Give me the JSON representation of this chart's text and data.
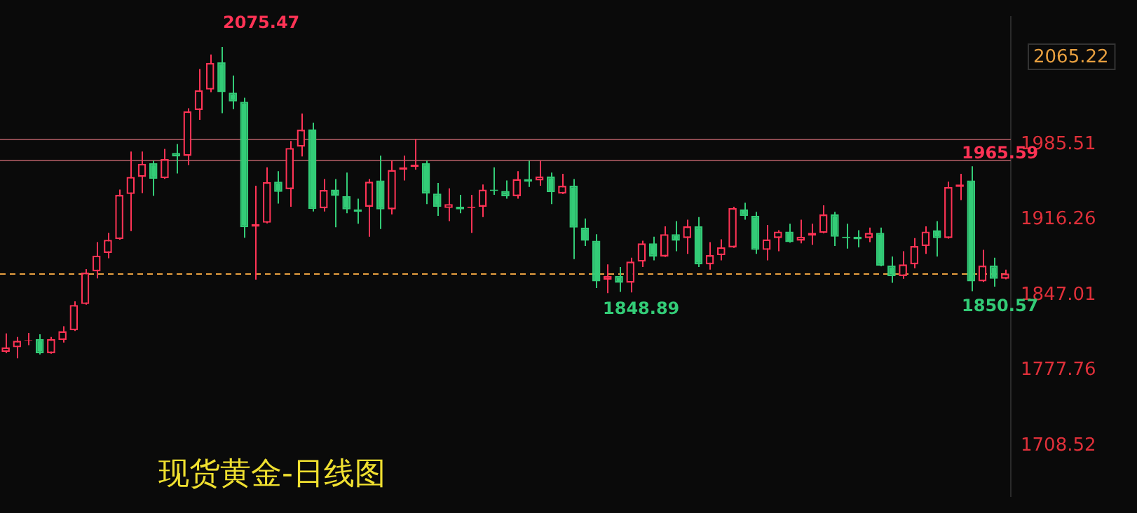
{
  "chart_data": {
    "type": "candlestick",
    "title": "现货黄金-日线图",
    "categories": [
      null,
      null,
      null,
      null,
      null,
      null,
      null,
      null,
      null,
      null,
      null,
      null,
      null,
      null,
      null,
      null,
      null,
      null,
      null,
      null,
      null,
      null,
      null,
      null,
      null,
      null,
      null,
      null,
      null,
      null,
      null,
      null,
      null,
      null,
      null,
      null,
      null,
      null,
      null,
      null,
      null,
      null,
      null,
      null,
      null,
      null,
      null,
      null,
      null,
      null,
      null,
      null,
      null,
      null,
      null,
      null,
      null,
      null,
      null,
      null,
      null,
      null,
      null,
      null,
      null,
      null,
      null,
      null,
      null,
      null,
      null,
      null,
      null,
      null,
      null,
      null,
      null,
      null,
      null,
      null,
      null,
      null,
      null,
      null,
      null,
      null,
      null,
      null,
      null
    ],
    "ohlc": [
      [
        1794.8,
        1811.7,
        1793.6,
        1799.0
      ],
      [
        1799.0,
        1808.6,
        1788.8,
        1805.0
      ],
      [
        1805.0,
        1812.2,
        1800.9,
        1805.7
      ],
      [
        1806.6,
        1811.0,
        1792.4,
        1793.6
      ],
      [
        1793.6,
        1808.6,
        1793.0,
        1806.6
      ],
      [
        1805.7,
        1818.3,
        1803.3,
        1813.8
      ],
      [
        1814.6,
        1841.2,
        1814.0,
        1837.9
      ],
      [
        1838.8,
        1870.9,
        1838.2,
        1867.7
      ],
      [
        1868.9,
        1895.8,
        1862.4,
        1883.4
      ],
      [
        1885.8,
        1904.3,
        1881.0,
        1897.9
      ],
      [
        1898.6,
        1944.1,
        1898.0,
        1939.3
      ],
      [
        1940.1,
        1979.1,
        1905.9,
        1955.8
      ],
      [
        1955.8,
        1979.1,
        1940.9,
        1967.9
      ],
      [
        1968.3,
        1970.7,
        1938.4,
        1954.1
      ],
      [
        1954.6,
        1981.5,
        1954.0,
        1972.2
      ],
      [
        1977.9,
        1986.0,
        1959.0,
        1974.6
      ],
      [
        1975.1,
        2018.9,
        1966.7,
        2016.2
      ],
      [
        2017.4,
        2055.1,
        2008.4,
        2035.5
      ],
      [
        2036.2,
        2068.4,
        2033.8,
        2060.8
      ],
      [
        2061.2,
        2075.47,
        2014.5,
        2033.8
      ],
      [
        2033.4,
        2049.1,
        2018.1,
        2025.3
      ],
      [
        2025.0,
        2028.6,
        1899.8,
        1909.5
      ],
      [
        1910.0,
        1947.7,
        1861.2,
        1912.4
      ],
      [
        1913.6,
        1964.6,
        1913.0,
        1951.0
      ],
      [
        1951.4,
        1961.0,
        1931.2,
        1942.1
      ],
      [
        1944.5,
        1988.8,
        1928.4,
        1982.4
      ],
      [
        1983.6,
        2014.1,
        1974.6,
        1999.3
      ],
      [
        1999.6,
        2005.7,
        1924.0,
        1926.4
      ],
      [
        1926.9,
        1953.8,
        1924.0,
        1943.8
      ],
      [
        1944.1,
        1953.8,
        1909.5,
        1938.4
      ],
      [
        1938.1,
        1959.8,
        1922.4,
        1926.0
      ],
      [
        1926.0,
        1935.7,
        1912.7,
        1923.6
      ],
      [
        1928.4,
        1953.8,
        1900.7,
        1951.4
      ],
      [
        1952.6,
        1975.5,
        1907.9,
        1926.0
      ],
      [
        1926.0,
        1970.7,
        1921.2,
        1962.2
      ],
      [
        1962.6,
        1975.5,
        1952.6,
        1964.6
      ],
      [
        1965.0,
        1990.8,
        1962.6,
        1967.0
      ],
      [
        1968.3,
        1970.7,
        1930.8,
        1940.5
      ],
      [
        1940.5,
        1950.2,
        1920.0,
        1928.4
      ],
      [
        1927.2,
        1945.3,
        1915.2,
        1930.8
      ],
      [
        1928.4,
        1939.3,
        1922.4,
        1926.0
      ],
      [
        1927.2,
        1939.3,
        1904.3,
        1928.4
      ],
      [
        1928.4,
        1948.9,
        1918.8,
        1944.1
      ],
      [
        1944.1,
        1964.6,
        1939.3,
        1942.9
      ],
      [
        1942.9,
        1952.6,
        1935.7,
        1938.1
      ],
      [
        1938.1,
        1961.0,
        1935.7,
        1953.8
      ],
      [
        1953.8,
        1970.7,
        1946.5,
        1951.4
      ],
      [
        1952.6,
        1970.7,
        1947.7,
        1956.2
      ],
      [
        1956.2,
        1959.8,
        1930.8,
        1941.7
      ],
      [
        1940.5,
        1958.6,
        1940.0,
        1947.7
      ],
      [
        1947.7,
        1953.8,
        1880.2,
        1909.1
      ],
      [
        1909.1,
        1917.6,
        1892.2,
        1897.1
      ],
      [
        1897.1,
        1903.1,
        1853.6,
        1859.7
      ],
      [
        1861.2,
        1875.3,
        1848.89,
        1864.5
      ],
      [
        1864.5,
        1872.9,
        1850.0,
        1858.4
      ],
      [
        1858.4,
        1881.4,
        1849.5,
        1877.8
      ],
      [
        1877.8,
        1897.1,
        1872.9,
        1894.6
      ],
      [
        1894.6,
        1900.7,
        1879.0,
        1882.6
      ],
      [
        1882.6,
        1910.3,
        1882.0,
        1903.1
      ],
      [
        1903.1,
        1915.2,
        1887.4,
        1897.1
      ],
      [
        1899.5,
        1916.4,
        1885.0,
        1910.3
      ],
      [
        1910.3,
        1918.8,
        1872.9,
        1875.3
      ],
      [
        1875.3,
        1895.8,
        1870.5,
        1883.8
      ],
      [
        1883.8,
        1898.3,
        1879.0,
        1891.0
      ],
      [
        1891.0,
        1928.4,
        1890.5,
        1927.2
      ],
      [
        1926.0,
        1932.1,
        1916.4,
        1920.0
      ],
      [
        1920.0,
        1923.6,
        1885.0,
        1888.6
      ],
      [
        1888.6,
        1911.5,
        1879.0,
        1898.3
      ],
      [
        1899.5,
        1906.7,
        1887.4,
        1905.5
      ],
      [
        1905.5,
        1912.7,
        1895.3,
        1895.8
      ],
      [
        1897.1,
        1916.4,
        1894.6,
        1900.7
      ],
      [
        1901.9,
        1912.7,
        1893.4,
        1904.3
      ],
      [
        1904.3,
        1929.6,
        1903.8,
        1921.2
      ],
      [
        1921.2,
        1923.6,
        1892.2,
        1900.7
      ],
      [
        1900.7,
        1912.7,
        1889.8,
        1899.5
      ],
      [
        1900.7,
        1906.7,
        1891.0,
        1898.3
      ],
      [
        1899.5,
        1909.1,
        1895.8,
        1904.3
      ],
      [
        1904.3,
        1909.1,
        1873.6,
        1874.1
      ],
      [
        1874.1,
        1882.6,
        1858.4,
        1864.5
      ],
      [
        1864.5,
        1887.4,
        1862.1,
        1875.3
      ],
      [
        1875.3,
        1899.5,
        1871.7,
        1892.2
      ],
      [
        1892.2,
        1910.3,
        1885.0,
        1905.5
      ],
      [
        1906.7,
        1915.2,
        1882.6,
        1899.5
      ],
      [
        1899.5,
        1951.4,
        1899.0,
        1946.5
      ],
      [
        1946.5,
        1958.6,
        1934.5,
        1948.9
      ],
      [
        1952.6,
        1965.59,
        1850.57,
        1859.7
      ],
      [
        1859.7,
        1888.6,
        1859.2,
        1874.1
      ],
      [
        1874.1,
        1881.4,
        1854.8,
        1862.1
      ],
      [
        1862.1,
        1870.5,
        1861.6,
        1866.9
      ]
    ],
    "colors": [
      "#ff3355",
      "#ff3355",
      "#ff3355",
      "#33cc77",
      "#ff3355",
      "#ff3355",
      "#ff3355",
      "#ff3355",
      "#ff3355",
      "#ff3355",
      "#ff3355",
      "#ff3355",
      "#ff3355",
      "#33cc77",
      "#ff3355",
      "#33cc77",
      "#ff3355",
      "#ff3355",
      "#ff3355",
      "#33cc77",
      "#33cc77",
      "#33cc77",
      "#ff3355",
      "#ff3355",
      "#33cc77",
      "#ff3355",
      "#ff3355",
      "#33cc77",
      "#ff3355",
      "#33cc77",
      "#33cc77",
      "#33cc77",
      "#ff3355",
      "#33cc77",
      "#ff3355",
      "#ff3355",
      "#ff3355",
      "#33cc77",
      "#33cc77",
      "#ff3355",
      "#33cc77",
      "#ff3355",
      "#ff3355",
      "#33cc77",
      "#33cc77",
      "#ff3355",
      "#33cc77",
      "#ff3355",
      "#33cc77",
      "#ff3355",
      "#33cc77",
      "#33cc77",
      "#33cc77",
      "#ff3355",
      "#33cc77",
      "#ff3355",
      "#ff3355",
      "#33cc77",
      "#ff3355",
      "#33cc77",
      "#ff3355",
      "#33cc77",
      "#ff3355",
      "#ff3355",
      "#ff3355",
      "#33cc77",
      "#33cc77",
      "#ff3355",
      "#ff3355",
      "#33cc77",
      "#ff3355",
      "#ff3355",
      "#ff3355",
      "#33cc77",
      "#33cc77",
      "#33cc77",
      "#ff3355",
      "#33cc77",
      "#33cc77",
      "#ff3355",
      "#ff3355",
      "#ff3355",
      "#33cc77",
      "#ff3355",
      "#ff3355",
      "#33cc77",
      "#ff3355",
      "#33cc77",
      "#ff3355"
    ],
    "ylim": [
      1661.7,
      2103.4
    ],
    "yticks": [
      1708.52,
      1777.76,
      1847.01,
      1916.26,
      1985.51
    ],
    "tick_labels": "y",
    "ref_lines": [
      {
        "axis": "y",
        "value": 1990.8,
        "color": "#8c4a50"
      },
      {
        "axis": "y",
        "value": 1971.5,
        "color": "#8c4a50"
      },
      {
        "axis": "y",
        "value": 1867.0,
        "color": "#e8a040",
        "line_style": "dashed"
      }
    ],
    "annotations": [
      "2065.22",
      "2075.47",
      "1965.59",
      "1848.89",
      "1850.57"
    ]
  }
}
